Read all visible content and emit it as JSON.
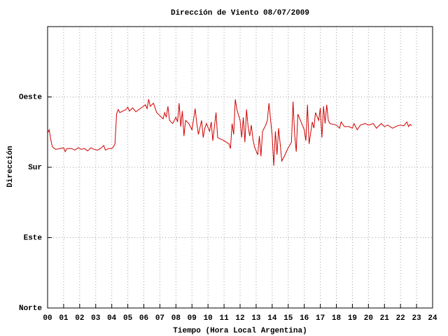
{
  "chart_data": {
    "type": "line",
    "title": "Dirección de Viento 08/07/2009",
    "xlabel": "Tiempo (Hora Local Argentina)",
    "ylabel": "Dirección",
    "xlim": [
      0,
      24
    ],
    "xticks": [
      {
        "value": 0,
        "label": "00"
      },
      {
        "value": 1,
        "label": "01"
      },
      {
        "value": 2,
        "label": "02"
      },
      {
        "value": 3,
        "label": "03"
      },
      {
        "value": 4,
        "label": "04"
      },
      {
        "value": 5,
        "label": "05"
      },
      {
        "value": 6,
        "label": "06"
      },
      {
        "value": 7,
        "label": "07"
      },
      {
        "value": 8,
        "label": "08"
      },
      {
        "value": 9,
        "label": "09"
      },
      {
        "value": 10,
        "label": "10"
      },
      {
        "value": 11,
        "label": "11"
      },
      {
        "value": 12,
        "label": "12"
      },
      {
        "value": 13,
        "label": "13"
      },
      {
        "value": 14,
        "label": "14"
      },
      {
        "value": 15,
        "label": "15"
      },
      {
        "value": 16,
        "label": "16"
      },
      {
        "value": 17,
        "label": "17"
      },
      {
        "value": 18,
        "label": "18"
      },
      {
        "value": 19,
        "label": "19"
      },
      {
        "value": 20,
        "label": "20"
      },
      {
        "value": 21,
        "label": "21"
      },
      {
        "value": 22,
        "label": "22"
      },
      {
        "value": 23,
        "label": "23"
      },
      {
        "value": 24,
        "label": "24"
      }
    ],
    "ylim": [
      0,
      360
    ],
    "yticks": [
      {
        "value": 0,
        "label": "Norte"
      },
      {
        "value": 90,
        "label": "Este"
      },
      {
        "value": 180,
        "label": "Sur"
      },
      {
        "value": 270,
        "label": "Oeste"
      }
    ],
    "grid": true,
    "color": "#d00000",
    "x": [
      0.0,
      0.1,
      0.2,
      0.3,
      0.5,
      0.8,
      1.0,
      1.1,
      1.2,
      1.5,
      1.7,
      1.9,
      2.1,
      2.3,
      2.5,
      2.7,
      2.9,
      3.1,
      3.3,
      3.5,
      3.6,
      3.8,
      4.0,
      4.1,
      4.2,
      4.3,
      4.4,
      4.5,
      4.7,
      4.9,
      5.0,
      5.1,
      5.3,
      5.5,
      5.7,
      5.9,
      6.1,
      6.2,
      6.3,
      6.4,
      6.6,
      6.8,
      7.0,
      7.2,
      7.3,
      7.4,
      7.5,
      7.6,
      7.8,
      8.0,
      8.1,
      8.2,
      8.3,
      8.4,
      8.5,
      8.6,
      8.8,
      9.0,
      9.2,
      9.3,
      9.4,
      9.6,
      9.7,
      9.8,
      9.9,
      10.1,
      10.2,
      10.3,
      10.5,
      10.6,
      11.0,
      11.3,
      11.4,
      11.5,
      11.6,
      11.7,
      11.8,
      12.0,
      12.1,
      12.2,
      12.3,
      12.4,
      12.5,
      12.6,
      12.7,
      12.8,
      12.9,
      13.1,
      13.2,
      13.3,
      13.4,
      13.6,
      13.7,
      13.8,
      14.0,
      14.1,
      14.2,
      14.3,
      14.4,
      14.5,
      14.6,
      14.8,
      15.0,
      15.2,
      15.3,
      15.4,
      15.5,
      15.6,
      15.8,
      16.0,
      16.1,
      16.2,
      16.3,
      16.5,
      16.6,
      16.7,
      16.9,
      17.0,
      17.1,
      17.2,
      17.3,
      17.4,
      17.5,
      17.6,
      18.0,
      18.2,
      18.3,
      18.5,
      18.8,
      19.0,
      19.1,
      19.3,
      19.5,
      19.8,
      20.0,
      20.3,
      20.5,
      20.8,
      21.0,
      21.2,
      21.5,
      21.8,
      22.0,
      22.2,
      22.4,
      22.5,
      22.6,
      22.7
    ],
    "values": [
      224,
      228,
      215,
      206,
      203,
      204,
      205,
      200,
      204,
      204,
      202,
      205,
      203,
      204,
      201,
      205,
      203,
      202,
      204,
      208,
      202,
      204,
      204,
      206,
      210,
      248,
      254,
      250,
      252,
      254,
      257,
      252,
      256,
      251,
      254,
      257,
      260,
      255,
      267,
      258,
      262,
      250,
      246,
      242,
      250,
      244,
      258,
      240,
      236,
      244,
      238,
      262,
      232,
      252,
      220,
      240,
      236,
      228,
      255,
      236,
      222,
      240,
      218,
      230,
      236,
      226,
      238,
      214,
      250,
      218,
      214,
      210,
      204,
      236,
      222,
      267,
      254,
      240,
      218,
      244,
      212,
      254,
      232,
      220,
      234,
      216,
      206,
      196,
      220,
      194,
      226,
      234,
      240,
      262,
      220,
      182,
      226,
      196,
      230,
      210,
      188,
      196,
      205,
      212,
      264,
      222,
      200,
      248,
      238,
      228,
      214,
      260,
      210,
      238,
      230,
      250,
      240,
      256,
      218,
      258,
      236,
      260,
      240,
      236,
      234,
      230,
      238,
      232,
      232,
      230,
      236,
      228,
      234,
      236,
      234,
      236,
      230,
      236,
      232,
      234,
      230,
      233,
      234,
      233,
      238,
      232,
      235,
      233
    ]
  }
}
